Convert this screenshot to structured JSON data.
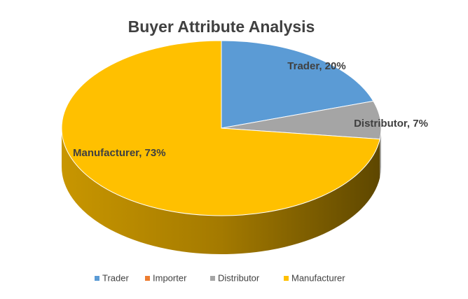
{
  "chart_data": {
    "type": "pie",
    "title": "Buyer Attribute Analysis",
    "categories": [
      "Trader",
      "Importer",
      "Distributor",
      "Manufacturer"
    ],
    "values": [
      20,
      0,
      7,
      73
    ],
    "value_labels": [
      "Trader, 20%",
      null,
      "Distributor, 7%",
      "Manufacturer, 73%"
    ],
    "colors": [
      "#5b9bd5",
      "#ed7d31",
      "#a5a5a5",
      "#ffc000"
    ],
    "legend": "bottom"
  }
}
